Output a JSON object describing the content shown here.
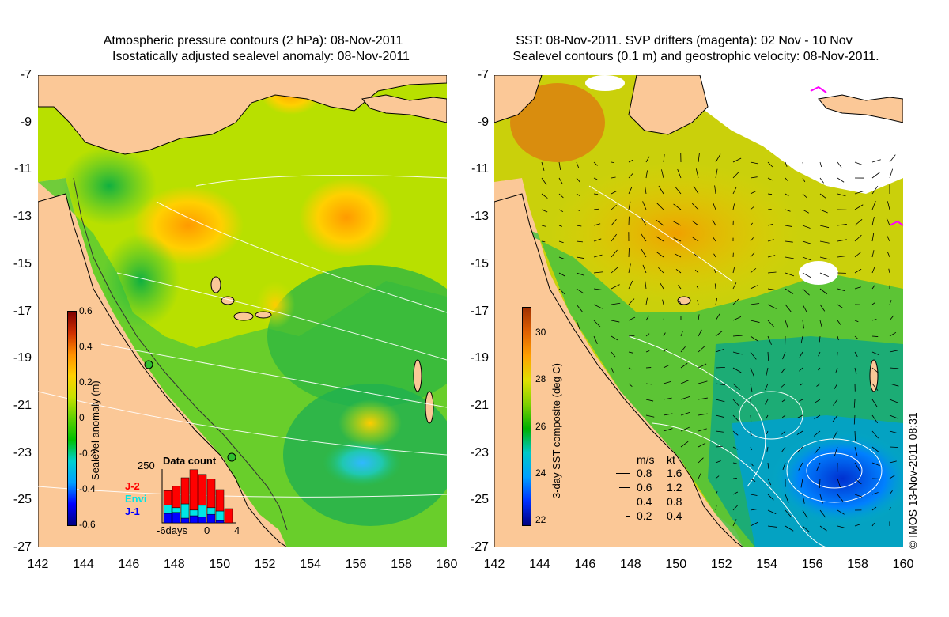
{
  "left": {
    "title_line1": "Atmospheric pressure contours (2 hPa): 08-Nov-2011",
    "title_line2": "Isostatically adjusted sealevel anomaly: 08-Nov-2011",
    "colorbar": {
      "label": "Sealevel anomaly (m)",
      "ticks": [
        "0.6",
        "0.4",
        "0.2",
        "0",
        "-0.2",
        "-0.4",
        "-0.6"
      ]
    },
    "histogram": {
      "title": "Data count",
      "ymax_label": "250",
      "x_labels": [
        "-6days",
        "0",
        "4"
      ],
      "satellites": [
        {
          "name": "J-2",
          "color": "#ff0000"
        },
        {
          "name": "Envi",
          "color": "#00e5e5"
        },
        {
          "name": "J-1",
          "color": "#0000ff"
        }
      ],
      "bars": [
        {
          "j2": 0.3,
          "envi": 0.18,
          "j1": 0.2
        },
        {
          "j2": 0.45,
          "envi": 0.1,
          "j1": 0.22
        },
        {
          "j2": 0.55,
          "envi": 0.3,
          "j1": 0.1
        },
        {
          "j2": 0.85,
          "envi": 0.12,
          "j1": 0.15
        },
        {
          "j2": 0.65,
          "envi": 0.25,
          "j1": 0.12
        },
        {
          "j2": 0.6,
          "envi": 0.14,
          "j1": 0.18
        },
        {
          "j2": 0.45,
          "envi": 0.2,
          "j1": 0.05
        },
        {
          "j2": 0.3,
          "envi": 0.0,
          "j1": 0.0
        }
      ]
    }
  },
  "right": {
    "title_line1": "SST: 08-Nov-2011. SVP drifters (magenta): 02 Nov - 10 Nov",
    "title_line2": "Sealevel contours (0.1 m) and geostrophic velocity: 08-Nov-2011.",
    "colorbar": {
      "label": "3-day SST composite (deg C)",
      "ticks": [
        "30",
        "28",
        "26",
        "24",
        "22"
      ]
    },
    "velocity_legend": {
      "header_ms": "m/s",
      "header_kt": "kt",
      "rows": [
        {
          "ms": "0.8",
          "kt": "1.6"
        },
        {
          "ms": "0.6",
          "kt": "1.2"
        },
        {
          "ms": "0.4",
          "kt": "0.8"
        },
        {
          "ms": "0.2",
          "kt": "0.4"
        }
      ]
    },
    "copyright": "© IMOS 13-Nov-2011 08:31"
  },
  "axes": {
    "lon_ticks": [
      "142",
      "144",
      "146",
      "148",
      "150",
      "152",
      "154",
      "156",
      "158",
      "160"
    ],
    "lat_ticks": [
      "-7",
      "-9",
      "-11",
      "-13",
      "-15",
      "-17",
      "-19",
      "-21",
      "-23",
      "-25",
      "-27"
    ]
  },
  "colors": {
    "land": "#fbc897",
    "sla_ramp": [
      "#000080",
      "#0000ff",
      "#00a0ff",
      "#00d0d0",
      "#00c000",
      "#60d000",
      "#c8e000",
      "#ffd000",
      "#ff9000",
      "#d03000",
      "#800000"
    ],
    "sst_ramp": [
      "#000080",
      "#0030ff",
      "#00a0ff",
      "#00c8c8",
      "#00b000",
      "#80d000",
      "#e0e000",
      "#ffa000",
      "#e06000",
      "#a03000"
    ]
  }
}
